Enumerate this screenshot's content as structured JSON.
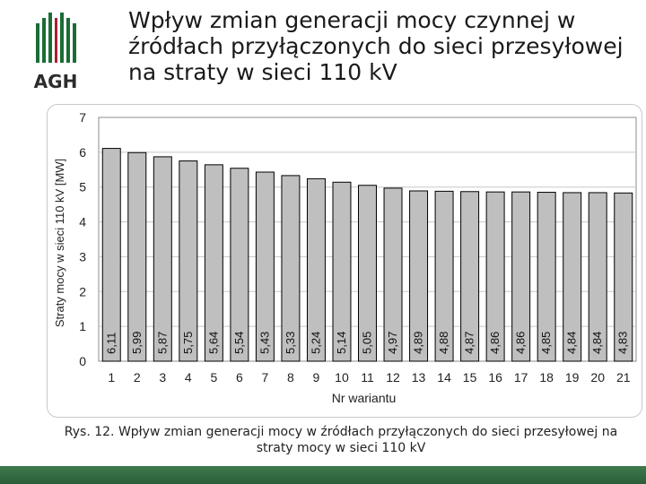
{
  "logo": {
    "text": "AGH",
    "colors": {
      "green": "#1a6d35",
      "red": "#a8232c",
      "dark": "#2b2b2b"
    }
  },
  "slide": {
    "title": "Wpływ zmian generacji mocy czynnej w źródłach przyłączonych do sieci przesyłowej na straty w sieci 110 kV",
    "caption": "Rys. 12. Wpływ zmian generacji mocy w źródłach przyłączonych do sieci przesyłowej na straty mocy w sieci 110 kV"
  },
  "chart_data": {
    "type": "bar",
    "title": "",
    "xlabel": "Nr wariantu",
    "ylabel": "Straty mocy w sieci 110 kV [MW]",
    "categories": [
      "1",
      "2",
      "3",
      "4",
      "5",
      "6",
      "7",
      "8",
      "9",
      "10",
      "11",
      "12",
      "13",
      "14",
      "15",
      "16",
      "17",
      "18",
      "19",
      "20",
      "21"
    ],
    "values": [
      6.11,
      5.99,
      5.87,
      5.75,
      5.64,
      5.54,
      5.43,
      5.33,
      5.24,
      5.14,
      5.05,
      4.97,
      4.89,
      4.88,
      4.87,
      4.86,
      4.86,
      4.85,
      4.84,
      4.84,
      4.83
    ],
    "data_labels": [
      "6,11",
      "5,99",
      "5,87",
      "5,75",
      "5,64",
      "5,54",
      "5,43",
      "5,33",
      "5,24",
      "5,14",
      "5,05",
      "4,97",
      "4,89",
      "4,88",
      "4,87",
      "4,86",
      "4,86",
      "4,85",
      "4,84",
      "4,84",
      "4,83"
    ],
    "ylim": [
      0,
      7
    ],
    "yticks": [
      "0",
      "1",
      "2",
      "3",
      "4",
      "5",
      "6",
      "7"
    ],
    "grid": true,
    "legend": "none",
    "colors": {
      "bar": "#bfbfbf",
      "bar_edge": "#000000",
      "plot_bg": "#ffffff",
      "grid": "#c8c8c8"
    }
  }
}
